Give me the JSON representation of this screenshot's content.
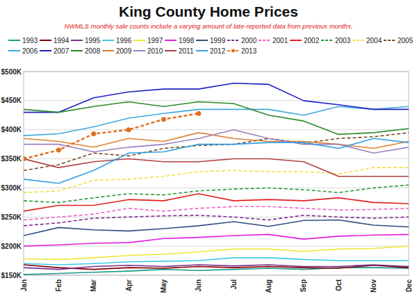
{
  "chart_data": {
    "type": "line",
    "title": "King County Home Prices",
    "subtitle": "NWMLS monthly sale counts include a varying amount of late-reported data from previous months.",
    "categories": [
      "Jan",
      "Feb",
      "Mar",
      "Apr",
      "May",
      "Jun",
      "Jul",
      "Aug",
      "Sep",
      "Oct",
      "Nov",
      "Dec"
    ],
    "ylim": [
      150000,
      500000
    ],
    "yticks": [
      {
        "value": 150000,
        "label": "$150K"
      },
      {
        "value": 200000,
        "label": "$200K"
      },
      {
        "value": 250000,
        "label": "$250K"
      },
      {
        "value": 300000,
        "label": "$300K"
      },
      {
        "value": 350000,
        "label": "$350K"
      },
      {
        "value": 400000,
        "label": "$400K"
      },
      {
        "value": 450000,
        "label": "$450K"
      },
      {
        "value": 500000,
        "label": "$500K"
      }
    ],
    "grid": true,
    "legend": "top",
    "series": [
      {
        "name": "1993",
        "color": "#1a9a8a",
        "line_style": "solid",
        "values": [
          151000,
          153000,
          155000,
          157000,
          160000,
          158000,
          160000,
          162000,
          160000,
          163000,
          163000,
          162000
        ]
      },
      {
        "name": "1994",
        "color": "#800000",
        "line_style": "solid",
        "values": [
          168000,
          163000,
          160000,
          163000,
          162000,
          165000,
          163000,
          165000,
          163000,
          162000,
          167000,
          163000
        ]
      },
      {
        "name": "1995",
        "color": "#7b2d8b",
        "line_style": "solid",
        "values": [
          163000,
          160000,
          165000,
          167000,
          165000,
          168000,
          166000,
          168000,
          165000,
          165000,
          168000,
          165000
        ]
      },
      {
        "name": "1996",
        "color": "#3ec9e6",
        "line_style": "solid",
        "values": [
          170000,
          168000,
          170000,
          173000,
          174000,
          175000,
          180000,
          180000,
          177000,
          175000,
          175000,
          175000
        ]
      },
      {
        "name": "1997",
        "color": "#eee83c",
        "line_style": "solid",
        "values": [
          178000,
          177000,
          180000,
          184000,
          186000,
          190000,
          195000,
          195000,
          191000,
          195000,
          196000,
          200000
        ]
      },
      {
        "name": "1998",
        "color": "#e020e0",
        "line_style": "solid",
        "values": [
          200000,
          202000,
          205000,
          206000,
          213000,
          215000,
          218000,
          220000,
          212000,
          217000,
          219000,
          220000
        ]
      },
      {
        "name": "1999",
        "color": "#2f4f7f",
        "line_style": "solid",
        "values": [
          218000,
          232000,
          228000,
          226000,
          230000,
          235000,
          242000,
          234000,
          244000,
          245000,
          236000,
          233000
        ]
      },
      {
        "name": "2000",
        "color": "#7a2a8a",
        "line_style": "dashed",
        "values": [
          235000,
          240000,
          248000,
          250000,
          252000,
          253000,
          250000,
          245000,
          253000,
          250000,
          248000,
          250000
        ]
      },
      {
        "name": "2001",
        "color": "#f060c0",
        "line_style": "dashed",
        "values": [
          245000,
          250000,
          255000,
          265000,
          260000,
          265000,
          268000,
          268000,
          265000,
          262000,
          263000,
          265000
        ]
      },
      {
        "name": "2002",
        "color": "#e02020",
        "line_style": "solid",
        "values": [
          260000,
          270000,
          270000,
          280000,
          278000,
          290000,
          278000,
          280000,
          278000,
          283000,
          275000,
          273000
        ]
      },
      {
        "name": "2003",
        "color": "#2a9a3a",
        "line_style": "dashed",
        "values": [
          278000,
          275000,
          283000,
          290000,
          288000,
          295000,
          298000,
          300000,
          297000,
          292000,
          300000,
          305000
        ]
      },
      {
        "name": "2004",
        "color": "#f0e040",
        "line_style": "dashed",
        "values": [
          292000,
          295000,
          313000,
          315000,
          320000,
          328000,
          330000,
          328000,
          328000,
          324000,
          335000,
          335000
        ]
      },
      {
        "name": "2005",
        "color": "#7a4a20",
        "line_style": "dashed",
        "values": [
          330000,
          340000,
          360000,
          355000,
          368000,
          373000,
          375000,
          385000,
          377000,
          385000,
          388000,
          395000
        ]
      },
      {
        "name": "2006",
        "color": "#40a8e0",
        "line_style": "solid",
        "values": [
          390000,
          393000,
          405000,
          420000,
          428000,
          435000,
          435000,
          435000,
          425000,
          440000,
          435000,
          440000
        ]
      },
      {
        "name": "2007",
        "color": "#2020c0",
        "line_style": "solid",
        "values": [
          430000,
          430000,
          455000,
          465000,
          470000,
          470000,
          480000,
          478000,
          450000,
          443000,
          435000,
          435000
        ]
      },
      {
        "name": "2008",
        "color": "#2a8a2a",
        "line_style": "solid",
        "values": [
          435000,
          430000,
          440000,
          448000,
          440000,
          448000,
          445000,
          425000,
          415000,
          392000,
          395000,
          402000
        ]
      },
      {
        "name": "2009",
        "color": "#e08030",
        "line_style": "solid",
        "values": [
          385000,
          380000,
          370000,
          385000,
          380000,
          395000,
          385000,
          380000,
          380000,
          375000,
          368000,
          380000
        ]
      },
      {
        "name": "2010",
        "color": "#a080c0",
        "line_style": "solid",
        "values": [
          375000,
          375000,
          362000,
          370000,
          375000,
          385000,
          400000,
          385000,
          375000,
          375000,
          360000,
          370000
        ]
      },
      {
        "name": "2011",
        "color": "#b04040",
        "line_style": "solid",
        "values": [
          350000,
          335000,
          345000,
          350000,
          345000,
          345000,
          350000,
          350000,
          345000,
          320000,
          320000,
          320000
        ]
      },
      {
        "name": "2012",
        "color": "#30a0e0",
        "line_style": "solid",
        "values": [
          315000,
          308000,
          330000,
          360000,
          362000,
          375000,
          375000,
          378000,
          378000,
          368000,
          385000,
          378000
        ]
      },
      {
        "name": "2013",
        "color": "#e07020",
        "line_style": "dashed",
        "marker": "circle",
        "values": [
          350000,
          365000,
          393000,
          400000,
          418000,
          428000,
          null,
          null,
          null,
          null,
          null,
          null
        ]
      }
    ]
  }
}
